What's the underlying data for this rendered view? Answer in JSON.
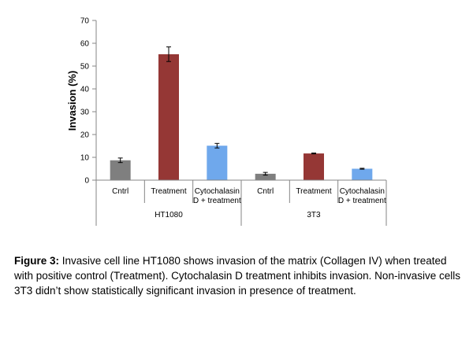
{
  "chart_data": {
    "type": "bar",
    "title": "",
    "ylabel": "Invasion (%)",
    "xlabel": "",
    "ylim": [
      0,
      70
    ],
    "yticks": [
      0,
      10,
      20,
      30,
      40,
      50,
      60,
      70
    ],
    "grid": false,
    "legend": "none",
    "groups": [
      {
        "name": "HT1080",
        "bars": [
          {
            "label": "Cntrl",
            "value": 8.7,
            "error": 1.0,
            "color": "#7f7f7f"
          },
          {
            "label": "Treatment",
            "value": 55.2,
            "error": 3.2,
            "color": "#953735"
          },
          {
            "label": "Cytochalasin D + treatment",
            "value": 15.1,
            "error": 1.0,
            "color": "#6fa8ec"
          }
        ]
      },
      {
        "name": "3T3",
        "bars": [
          {
            "label": "Cntrl",
            "value": 2.8,
            "error": 0.6,
            "color": "#7f7f7f"
          },
          {
            "label": "Treatment",
            "value": 11.7,
            "error": 0.2,
            "color": "#953735"
          },
          {
            "label": "Cytochalasin D + treatment",
            "value": 5.0,
            "error": 0.2,
            "color": "#6fa8ec"
          }
        ]
      }
    ]
  },
  "caption": {
    "label": "Figure 3:",
    "text": " Invasive cell line HT1080 shows invasion of the matrix (Collagen IV) when treated with positive control (Treatment). Cytochalasin D treatment inhibits invasion. Non-invasive cells 3T3 didn’t show statistically significant invasion in presence of treatment."
  }
}
